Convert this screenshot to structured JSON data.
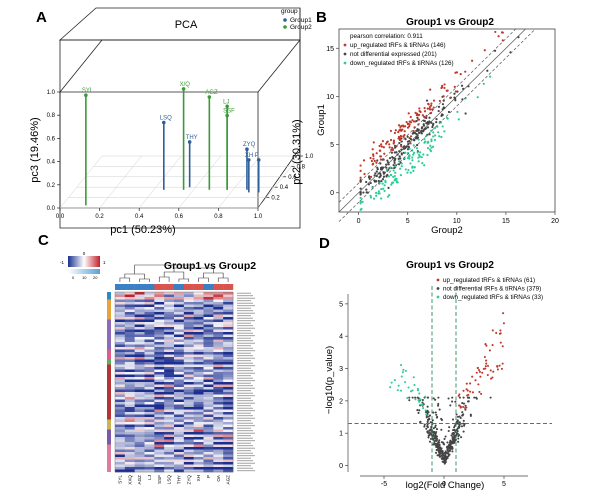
{
  "panels": {
    "A": {
      "letter": "A",
      "title": "PCA",
      "xlabel": "pc1 (50.23%)",
      "ylabel": "pc3 (19.46%)",
      "zlabel": "pc2 (30.31%)",
      "legend_title": "group",
      "legend": [
        {
          "name": "Group1",
          "color": "#2d5f9a"
        },
        {
          "name": "Group2",
          "color": "#3a9a3a"
        }
      ],
      "pc1_ticks": [
        "0.0",
        "0.2",
        "0.4",
        "0.6",
        "0.8",
        "1.0"
      ],
      "pc3_ticks": [
        "0.0",
        "0.2",
        "0.4",
        "0.6",
        "0.8",
        "1.0"
      ],
      "pc2_ticks": [
        "0.2",
        "0.4",
        "0.6",
        "0.8",
        "1.0"
      ],
      "points": [
        {
          "label": "SYL",
          "group": "Group2",
          "pc1": 0.12,
          "pc2": 0.05,
          "pc3": 0.95
        },
        {
          "label": "X/Q",
          "group": "Group2",
          "pc1": 0.55,
          "pc2": 0.35,
          "pc3": 0.87
        },
        {
          "label": "AGZ",
          "group": "Group2",
          "pc1": 0.68,
          "pc2": 0.35,
          "pc3": 0.8
        },
        {
          "label": "LJ",
          "group": "Group2",
          "pc1": 0.77,
          "pc2": 0.35,
          "pc3": 0.72
        },
        {
          "label": "SSF",
          "group": "Group2",
          "pc1": 0.77,
          "pc2": 0.35,
          "pc3": 0.64
        },
        {
          "label": "LSQ",
          "group": "Group1",
          "pc1": 0.45,
          "pc2": 0.35,
          "pc3": 0.58
        },
        {
          "label": "THY",
          "group": "Group1",
          "pc1": 0.57,
          "pc2": 0.4,
          "pc3": 0.39
        },
        {
          "label": "ZYQ",
          "group": "Group1",
          "pc1": 0.87,
          "pc2": 0.35,
          "pc3": 0.35
        },
        {
          "label": "XH",
          "group": "Group1",
          "pc1": 0.89,
          "pc2": 0.3,
          "pc3": 0.28
        },
        {
          "label": "P",
          "group": "Group1",
          "pc1": 0.94,
          "pc2": 0.3,
          "pc3": 0.28
        }
      ]
    },
    "B": {
      "letter": "B",
      "title": "Group1 vs Group2",
      "xlabel": "Group2",
      "ylabel": "Group1",
      "xticks": [
        "0",
        "5",
        "10",
        "15",
        "20"
      ],
      "yticks": [
        "0",
        "5",
        "10",
        "15"
      ],
      "legend": [
        {
          "text": "pearson correlation: 0.911",
          "color": ""
        },
        {
          "text": "up_regulated tRFs & tiRNAs (146)",
          "color": "#c0392b"
        },
        {
          "text": "not differential expressed (201)",
          "color": "#444444"
        },
        {
          "text": "down_regulated tRFs & tiRNAs (126)",
          "color": "#2ecc9a"
        }
      ]
    },
    "C": {
      "letter": "C",
      "title": "Group1 vs Group2",
      "scale_ticks": [
        "-1",
        "0",
        "1"
      ],
      "scale_ticks_bottom": [
        "0",
        "10",
        "20"
      ],
      "samples": [
        "SYL",
        "XXQ",
        "AGZ",
        "LJ",
        "SSF",
        "LSQ",
        "THY",
        "ZYQ",
        "XH",
        "P",
        "OA",
        "AGZ"
      ],
      "group_colors": [
        "#3b7fc4",
        "#3b7fc4",
        "#3b7fc4",
        "#3b7fc4",
        "#d9534f",
        "#d9534f",
        "#3b7fc4",
        "#d9534f",
        "#d9534f",
        "#3b7fc4",
        "#d9534f",
        "#d9534f"
      ]
    },
    "D": {
      "letter": "D",
      "title": "Group1 vs Group2",
      "xlabel": "log2(Fold Change)",
      "ylabel": "−log10(p_value)",
      "xticks": [
        "-5",
        "0",
        "5"
      ],
      "yticks": [
        "0",
        "1",
        "2",
        "3",
        "4",
        "5"
      ],
      "legend": [
        {
          "text": "up_regulated tRFs & tiRNAs (61)",
          "color": "#c0392b"
        },
        {
          "text": "not differential tRFs & tiRNAs (379)",
          "color": "#444444"
        },
        {
          "text": "down_regulated tRFs & tiRNAs (33)",
          "color": "#2ecc9a"
        }
      ]
    }
  },
  "chart_data": [
    {
      "type": "scatter",
      "title": "PCA",
      "xlabel": "pc1 (50.23%)",
      "ylabel": "pc3 (19.46%)",
      "zlabel": "pc2 (30.31%)",
      "xlim": [
        0,
        1
      ],
      "ylim": [
        0,
        1
      ],
      "zlim": [
        0,
        1
      ],
      "series": [
        {
          "name": "Group1",
          "labels": [
            "LSQ",
            "THY",
            "ZYQ",
            "XH",
            "P"
          ]
        },
        {
          "name": "Group2",
          "labels": [
            "SYL",
            "X/Q",
            "AGZ",
            "LJ",
            "SSF"
          ]
        }
      ]
    },
    {
      "type": "scatter",
      "title": "Group1 vs Group2",
      "xlabel": "Group2",
      "ylabel": "Group1",
      "xlim": [
        -2,
        20
      ],
      "ylim": [
        -2,
        17
      ],
      "series": [
        {
          "name": "up_regulated tRFs & tiRNAs",
          "count": 146
        },
        {
          "name": "not differential expressed",
          "count": 201
        },
        {
          "name": "down_regulated tRFs & tiRNAs",
          "count": 126
        }
      ]
    },
    {
      "type": "heatmap",
      "title": "Group1 vs Group2",
      "columns": [
        "SYL",
        "XXQ",
        "AGZ",
        "LJ",
        "SSF",
        "LSQ",
        "THY",
        "ZYQ",
        "XH",
        "P",
        "OA",
        "AGZ"
      ],
      "scale": [
        -1,
        1
      ]
    },
    {
      "type": "scatter",
      "title": "Group1 vs Group2",
      "xlabel": "log2(Fold Change)",
      "ylabel": "−log10(p_value)",
      "xlim": [
        -8,
        9
      ],
      "ylim": [
        -0.2,
        5.8
      ],
      "series": [
        {
          "name": "up_regulated tRFs & tiRNAs",
          "count": 61
        },
        {
          "name": "not differential tRFs & tiRNAs",
          "count": 379
        },
        {
          "name": "down_regulated tRFs & tiRNAs",
          "count": 33
        }
      ]
    }
  ]
}
